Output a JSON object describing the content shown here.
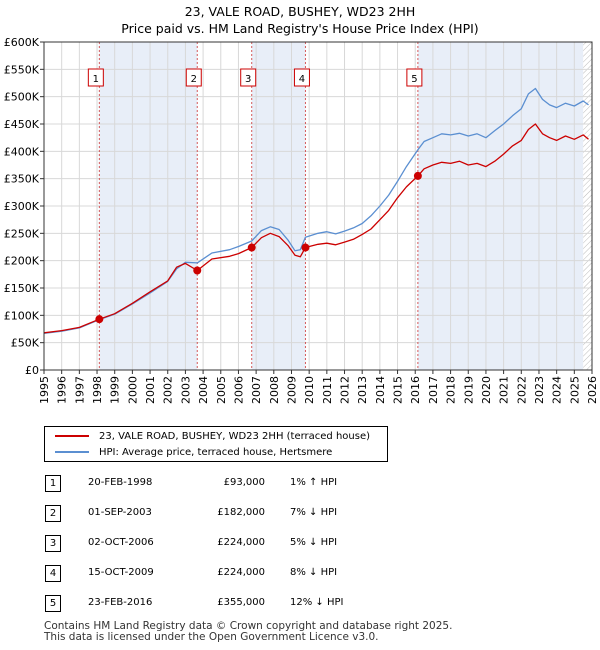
{
  "title_line1": "23, VALE ROAD, BUSHEY, WD23 2HH",
  "title_line2": "Price paid vs. HM Land Registry's House Price Index (HPI)",
  "chart_data": {
    "type": "line",
    "xlim": [
      1995,
      2026
    ],
    "ylim": [
      0,
      600000
    ],
    "yticks": [
      0,
      50000,
      100000,
      150000,
      200000,
      250000,
      300000,
      350000,
      400000,
      450000,
      500000,
      550000,
      600000
    ],
    "ytick_labels": [
      "£0",
      "£50K",
      "£100K",
      "£150K",
      "£200K",
      "£250K",
      "£300K",
      "£350K",
      "£400K",
      "£450K",
      "£500K",
      "£550K",
      "£600K"
    ],
    "xticks": [
      1995,
      1996,
      1997,
      1998,
      1999,
      2000,
      2001,
      2002,
      2003,
      2004,
      2005,
      2006,
      2007,
      2008,
      2009,
      2010,
      2011,
      2012,
      2013,
      2014,
      2015,
      2016,
      2017,
      2018,
      2019,
      2020,
      2021,
      2022,
      2023,
      2024,
      2025,
      2026
    ],
    "shaded_ranges": [
      [
        1998.13,
        2003.67
      ],
      [
        2006.75,
        2009.79
      ],
      [
        2016.15,
        2025.5
      ]
    ],
    "hatched_from": 2025.5,
    "series": [
      {
        "name": "23, VALE ROAD, BUSHEY, WD23 2HH (terraced house)",
        "color": "#cc0000",
        "x": [
          1995.0,
          1996.0,
          1997.0,
          1998.13,
          1999.0,
          2000.0,
          2001.0,
          2002.0,
          2002.5,
          2003.0,
          2003.67,
          2004.5,
          2005.5,
          2006.0,
          2006.75,
          2007.3,
          2007.8,
          2008.3,
          2008.8,
          2009.2,
          2009.5,
          2009.79,
          2010.5,
          2011.0,
          2011.5,
          2012.0,
          2012.5,
          2013.0,
          2013.5,
          2014.0,
          2014.5,
          2015.0,
          2015.5,
          2016.15,
          2016.5,
          2017.0,
          2017.5,
          2018.0,
          2018.5,
          2019.0,
          2019.5,
          2020.0,
          2020.5,
          2021.0,
          2021.5,
          2022.0,
          2022.4,
          2022.8,
          2023.2,
          2023.6,
          2024.0,
          2024.5,
          2025.0,
          2025.5,
          2025.8
        ],
        "y": [
          68000,
          72000,
          78000,
          93000,
          103000,
          122000,
          143000,
          163000,
          188000,
          195000,
          182000,
          203000,
          208000,
          213000,
          224000,
          242000,
          250000,
          244000,
          228000,
          210000,
          207000,
          224000,
          230000,
          232000,
          229000,
          234000,
          239000,
          248000,
          258000,
          275000,
          292000,
          315000,
          335000,
          355000,
          368000,
          375000,
          380000,
          378000,
          382000,
          375000,
          378000,
          372000,
          382000,
          395000,
          410000,
          420000,
          440000,
          450000,
          432000,
          425000,
          420000,
          428000,
          422000,
          430000,
          422000
        ]
      },
      {
        "name": "HPI: Average price, terraced house, Hertsmere",
        "color": "#5b8fd1",
        "x": [
          1995.0,
          1996.0,
          1997.0,
          1998.13,
          1999.0,
          2000.0,
          2001.0,
          2002.0,
          2002.5,
          2003.0,
          2003.67,
          2004.5,
          2005.5,
          2006.0,
          2006.75,
          2007.3,
          2007.8,
          2008.3,
          2008.8,
          2009.2,
          2009.5,
          2009.79,
          2010.5,
          2011.0,
          2011.5,
          2012.0,
          2012.5,
          2013.0,
          2013.5,
          2014.0,
          2014.5,
          2015.0,
          2015.5,
          2016.15,
          2016.5,
          2017.0,
          2017.5,
          2018.0,
          2018.5,
          2019.0,
          2019.5,
          2020.0,
          2020.5,
          2021.0,
          2021.5,
          2022.0,
          2022.4,
          2022.8,
          2023.2,
          2023.6,
          2024.0,
          2024.5,
          2025.0,
          2025.5,
          2025.8
        ],
        "y": [
          67000,
          71000,
          77000,
          92000,
          102000,
          121000,
          141000,
          162000,
          185000,
          197000,
          196000,
          214000,
          220000,
          226000,
          236000,
          255000,
          262000,
          257000,
          238000,
          218000,
          220000,
          243000,
          250000,
          253000,
          249000,
          254000,
          260000,
          268000,
          282000,
          300000,
          320000,
          345000,
          372000,
          403000,
          418000,
          425000,
          432000,
          430000,
          433000,
          428000,
          432000,
          425000,
          438000,
          450000,
          465000,
          478000,
          505000,
          515000,
          495000,
          485000,
          480000,
          488000,
          483000,
          492000,
          485000
        ]
      }
    ],
    "sales": [
      {
        "n": "1",
        "x": 1998.13,
        "y": 93000
      },
      {
        "n": "2",
        "x": 2003.67,
        "y": 182000
      },
      {
        "n": "3",
        "x": 2006.75,
        "y": 224000
      },
      {
        "n": "4",
        "x": 2009.79,
        "y": 224000
      },
      {
        "n": "5",
        "x": 2016.15,
        "y": 355000
      }
    ]
  },
  "legend": {
    "series1": "23, VALE ROAD, BUSHEY, WD23 2HH (terraced house)",
    "series2": "HPI: Average price, terraced house, Hertsmere",
    "color1": "#cc0000",
    "color2": "#5b8fd1"
  },
  "sales_table": [
    {
      "n": "1",
      "date": "20-FEB-1998",
      "price": "£93,000",
      "hpi": "1% ↑ HPI"
    },
    {
      "n": "2",
      "date": "01-SEP-2003",
      "price": "£182,000",
      "hpi": "7% ↓ HPI"
    },
    {
      "n": "3",
      "date": "02-OCT-2006",
      "price": "£224,000",
      "hpi": "5% ↓ HPI"
    },
    {
      "n": "4",
      "date": "15-OCT-2009",
      "price": "£224,000",
      "hpi": "8% ↓ HPI"
    },
    {
      "n": "5",
      "date": "23-FEB-2016",
      "price": "£355,000",
      "hpi": "12% ↓ HPI"
    }
  ],
  "footer": {
    "line1": "Contains HM Land Registry data © Crown copyright and database right 2025.",
    "line2": "This data is licensed under the Open Government Licence v3.0."
  }
}
